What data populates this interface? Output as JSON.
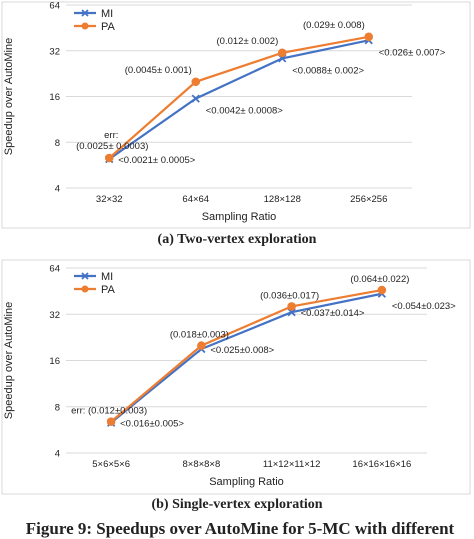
{
  "chart_data": [
    {
      "type": "line",
      "caption": "(a) Two-vertex exploration",
      "xlabel": "Sampling Ratio",
      "ylabel": "Speedup over AutoMine",
      "categories": [
        "32×32",
        "64×64",
        "128×128",
        "256×256"
      ],
      "y_scale": "log2",
      "ylim": [
        4,
        64
      ],
      "yticks": [
        4,
        8,
        16,
        32,
        64
      ],
      "legend_placement": "top-left",
      "grid": true,
      "series": [
        {
          "name": "MI",
          "color": "#4472C4",
          "marker": "x",
          "values": [
            6.2,
            15.5,
            28.5,
            37.5
          ]
        },
        {
          "name": "PA",
          "color": "#ED7D31",
          "marker": "circle",
          "values": [
            6.3,
            20.0,
            31.0,
            39.5
          ]
        }
      ],
      "annotations": [
        {
          "text": "err:",
          "series": "PA",
          "index": 0,
          "pos": "above2"
        },
        {
          "text": "(0.0025± 0.0003)",
          "series": "PA",
          "index": 0,
          "pos": "above"
        },
        {
          "text": "<0.0021± 0.0005>",
          "series": "MI",
          "index": 0,
          "pos": "right"
        },
        {
          "text": "(0.0045± 0.001)",
          "series": "PA",
          "index": 1,
          "pos": "above-left"
        },
        {
          "text": "<0.0042± 0.0008>",
          "series": "MI",
          "index": 1,
          "pos": "right-below"
        },
        {
          "text": "(0.012± 0.002)",
          "series": "PA",
          "index": 2,
          "pos": "above-left"
        },
        {
          "text": "<0.0088± 0.002>",
          "series": "MI",
          "index": 2,
          "pos": "right-below"
        },
        {
          "text": "(0.029± 0.008)",
          "series": "PA",
          "index": 3,
          "pos": "above-left"
        },
        {
          "text": "<0.026± 0.007>",
          "series": "MI",
          "index": 3,
          "pos": "right-below"
        }
      ]
    },
    {
      "type": "line",
      "caption": "(b) Single-vertex exploration",
      "xlabel": "Sampling Ratio",
      "ylabel": "Speedup over AutoMine",
      "categories": [
        "5×6×5×6",
        "8×8×8×8",
        "11×12×11×12",
        "16×16×16×16"
      ],
      "y_scale": "log2",
      "ylim": [
        4,
        64
      ],
      "yticks": [
        4,
        8,
        16,
        32,
        64
      ],
      "legend_placement": "top-left",
      "grid": true,
      "series": [
        {
          "name": "MI",
          "color": "#4472C4",
          "marker": "x",
          "values": [
            6.3,
            19.0,
            33.0,
            43.5
          ]
        },
        {
          "name": "PA",
          "color": "#ED7D31",
          "marker": "circle",
          "values": [
            6.4,
            20.0,
            36.0,
            46.0
          ]
        }
      ],
      "annotations": [
        {
          "text": "err: (0.012±0.003)",
          "series": "PA",
          "index": 0,
          "pos": "above"
        },
        {
          "text": "<0.016±0.005>",
          "series": "MI",
          "index": 0,
          "pos": "right"
        },
        {
          "text": "(0.018±0.003)",
          "series": "PA",
          "index": 1,
          "pos": "above"
        },
        {
          "text": "<0.025±0.008>",
          "series": "MI",
          "index": 1,
          "pos": "right"
        },
        {
          "text": "(0.036±0.017)",
          "series": "PA",
          "index": 2,
          "pos": "above"
        },
        {
          "text": "<0.037±0.014>",
          "series": "MI",
          "index": 2,
          "pos": "right"
        },
        {
          "text": "(0.064±0.022)",
          "series": "PA",
          "index": 3,
          "pos": "above"
        },
        {
          "text": "<0.054±0.023>",
          "series": "MI",
          "index": 3,
          "pos": "right-below"
        }
      ]
    }
  ],
  "figure_caption": "Figure 9: Speedups over AutoMine for 5-MC with different"
}
